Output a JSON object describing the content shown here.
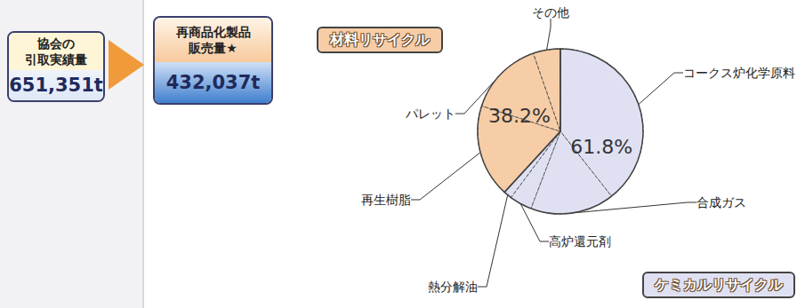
{
  "chart_data": {
    "type": "pie",
    "data_labels": true,
    "groups": [
      {
        "name": "ケミカルリサイクル",
        "value": 61.8,
        "value_label": "61.8%",
        "color": "#dfe1f3",
        "slices": [
          {
            "name": "コークス炉化学原料",
            "value": 39.4
          },
          {
            "name": "合成ガス",
            "value": 16.4
          },
          {
            "name": "高炉還元剤",
            "value": 4.4
          },
          {
            "name": "熱分解油",
            "value": 1.6
          }
        ]
      },
      {
        "name": "材料リサイクル",
        "value": 38.2,
        "value_label": "38.2%",
        "color": "#f6cda6",
        "slices": [
          {
            "name": "再生樹脂",
            "value": 18.2
          },
          {
            "name": "パレット",
            "value": 14.7
          },
          {
            "name": "その他",
            "value": 5.3
          }
        ]
      }
    ]
  },
  "boxes": [
    {
      "title_lines": [
        "協会の",
        "引取実績量"
      ],
      "value": "651,351t"
    },
    {
      "title_lines": [
        "再商品化製品",
        "販売量★"
      ],
      "value": "432,037t"
    }
  ]
}
